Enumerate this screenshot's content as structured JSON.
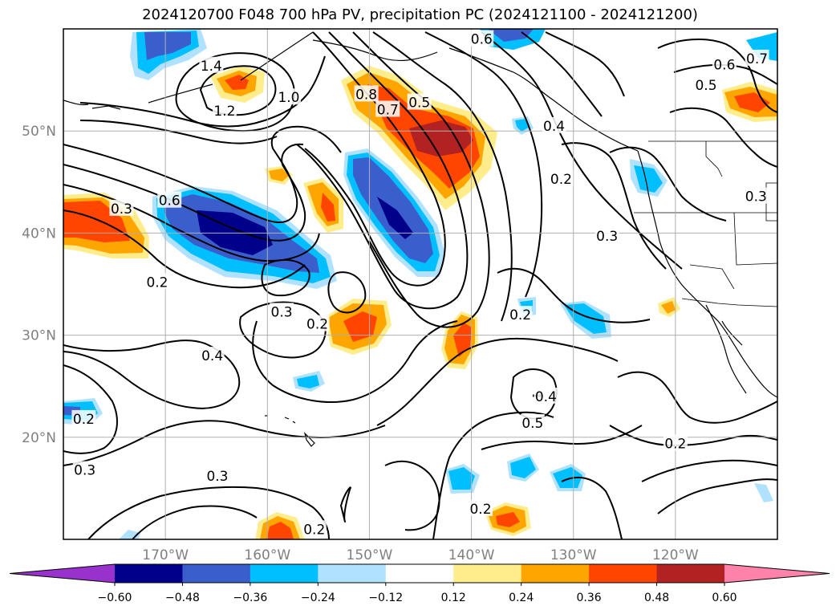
{
  "title": "2024120700 F048 700 hPa PV, precipitation PC (2024121100 - 2024121200)",
  "map": {
    "lon_range": [
      -180,
      -110
    ],
    "lat_range": [
      10,
      60
    ],
    "lon_ticks": [
      {
        "value": -170,
        "label": "170°W"
      },
      {
        "value": -160,
        "label": "160°W"
      },
      {
        "value": -150,
        "label": "150°W"
      },
      {
        "value": -140,
        "label": "140°W"
      },
      {
        "value": -130,
        "label": "130°W"
      },
      {
        "value": -120,
        "label": "120°W"
      }
    ],
    "lat_ticks": [
      {
        "value": 20,
        "label": "20°N"
      },
      {
        "value": 30,
        "label": "30°N"
      },
      {
        "value": 40,
        "label": "40°N"
      },
      {
        "value": 50,
        "label": "50°N"
      }
    ],
    "grid": true
  },
  "contour_labels": [
    {
      "text": "1.4",
      "lon": -165.5,
      "lat": 56.4
    },
    {
      "text": "1.2",
      "lon": -164.2,
      "lat": 52.0
    },
    {
      "text": "1.0",
      "lon": -157.9,
      "lat": 53.3
    },
    {
      "text": "0.8",
      "lon": -150.3,
      "lat": 53.6
    },
    {
      "text": "0.7",
      "lon": -148.2,
      "lat": 52.1
    },
    {
      "text": "0.5",
      "lon": -145.1,
      "lat": 52.8
    },
    {
      "text": "0.6",
      "lon": -139.0,
      "lat": 59.0
    },
    {
      "text": "0.4",
      "lon": -131.9,
      "lat": 50.5
    },
    {
      "text": "0.2",
      "lon": -131.2,
      "lat": 45.3
    },
    {
      "text": "0.3",
      "lon": -126.7,
      "lat": 39.7
    },
    {
      "text": "0.5",
      "lon": -117.0,
      "lat": 54.5
    },
    {
      "text": "0.6",
      "lon": -115.2,
      "lat": 56.5
    },
    {
      "text": "0.7",
      "lon": -112.0,
      "lat": 57.1
    },
    {
      "text": "0.3",
      "lon": -112.1,
      "lat": 43.6
    },
    {
      "text": "0.6",
      "lon": -169.6,
      "lat": 43.2
    },
    {
      "text": "0.3",
      "lon": -174.3,
      "lat": 42.4
    },
    {
      "text": "0.2",
      "lon": -170.8,
      "lat": 35.2
    },
    {
      "text": "0.3",
      "lon": -158.6,
      "lat": 32.3
    },
    {
      "text": "0.2",
      "lon": -155.1,
      "lat": 31.1
    },
    {
      "text": "0.2",
      "lon": -135.2,
      "lat": 32.0
    },
    {
      "text": "0.4",
      "lon": -165.4,
      "lat": 28.0
    },
    {
      "text": "0.2",
      "lon": -178.0,
      "lat": 21.8
    },
    {
      "text": "0.3",
      "lon": -177.9,
      "lat": 16.8
    },
    {
      "text": "0.3",
      "lon": -164.9,
      "lat": 16.2
    },
    {
      "text": "0.4",
      "lon": -132.7,
      "lat": 24.0
    },
    {
      "text": "0.5",
      "lon": -134.0,
      "lat": 21.4
    },
    {
      "text": "0.2",
      "lon": -120.0,
      "lat": 19.4
    },
    {
      "text": "0.2",
      "lon": -139.1,
      "lat": 13.0
    },
    {
      "text": "0.2",
      "lon": -155.4,
      "lat": 11.0
    }
  ],
  "colorbar": {
    "levels": [
      -0.6,
      -0.48,
      -0.36,
      -0.24,
      -0.12,
      0.12,
      0.24,
      0.36,
      0.48,
      0.6
    ],
    "tick_labels": [
      "−0.60",
      "−0.48",
      "−0.36",
      "−0.24",
      "−0.12",
      "0.12",
      "0.24",
      "0.36",
      "0.48",
      "0.60"
    ],
    "colors": [
      "#9932cc",
      "#00008b",
      "#3a5fcd",
      "#00bfff",
      "#b0e2ff",
      "#ffffff",
      "#ffec8b",
      "#ffa500",
      "#ff4500",
      "#b22222",
      "#ff82ab"
    ],
    "extend": "both"
  },
  "colors": {
    "frame": "#000000",
    "grid": "#b0b0b0",
    "axis_text": "#808080",
    "contour": "#000000"
  }
}
